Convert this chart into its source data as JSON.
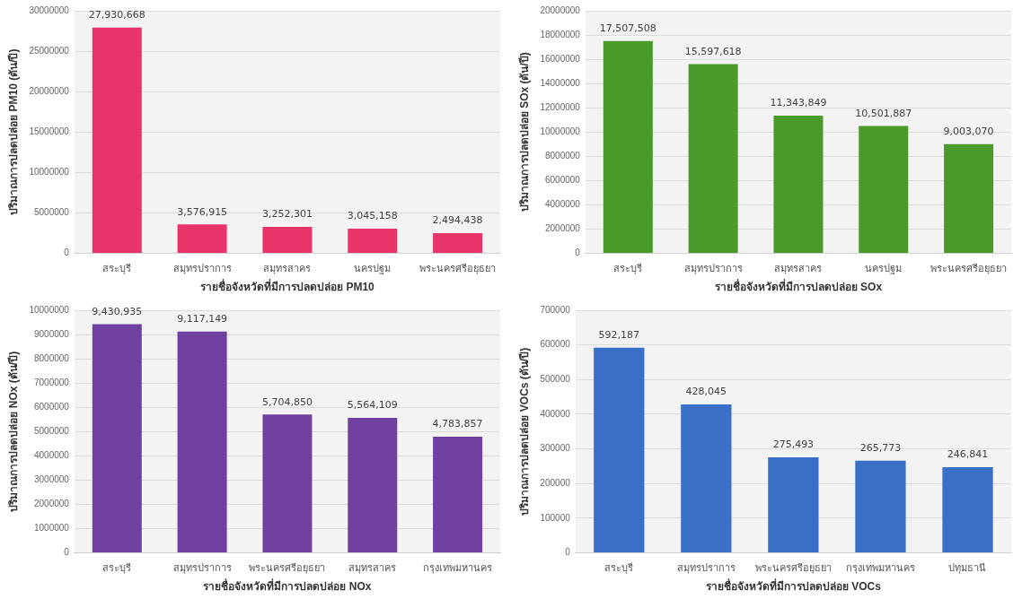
{
  "chart_data": [
    {
      "type": "bar",
      "xlabel": "รายชื่อจังหวัดที่มีการปลดปล่อย PM10",
      "ylabel": "ปริมาณการปลดปล่อย PM10 (ตัน/ปี)",
      "categories": [
        "สระบุรี",
        "สมุทรปราการ",
        "สมุทรสาคร",
        "นครปฐม",
        "พระนครศรีอยุธยา"
      ],
      "values": [
        27930668,
        3576915,
        3252301,
        3045158,
        2494438
      ],
      "value_labels": [
        "27,930,668",
        "3,576,915",
        "3,252,301",
        "3,045,158",
        "2,494,438"
      ],
      "color": "#e8336b",
      "ylim": [
        0,
        30000000
      ],
      "yticks": [
        0,
        5000000,
        10000000,
        15000000,
        20000000,
        25000000,
        30000000
      ],
      "grid": "y"
    },
    {
      "type": "bar",
      "xlabel": "รายชื่อจังหวัดที่มีการปลดปล่อย SOx",
      "ylabel": "ปริมาณการปลดปล่อย SOx (ตัน/ปี)",
      "categories": [
        "สระบุรี",
        "สมุทรปราการ",
        "สมุทรสาคร",
        "นครปฐม",
        "พระนครศรีอยุธยา"
      ],
      "values": [
        17507508,
        15597618,
        11343849,
        10501887,
        9003070
      ],
      "value_labels": [
        "17,507,508",
        "15,597,618",
        "11,343,849",
        "10,501,887",
        "9,003,070"
      ],
      "color": "#4a9a2a",
      "ylim": [
        0,
        20000000
      ],
      "yticks": [
        0,
        2000000,
        4000000,
        6000000,
        8000000,
        10000000,
        12000000,
        14000000,
        16000000,
        18000000,
        20000000
      ],
      "grid": "y"
    },
    {
      "type": "bar",
      "xlabel": "รายชื่อจังหวัดที่มีการปลดปล่อย NOx",
      "ylabel": "ปริมาณการปลดปล่อย NOx (ตัน/ปี)",
      "categories": [
        "สระบุรี",
        "สมุทรปราการ",
        "พระนครศรีอยุธยา",
        "สมุทรสาคร",
        "กรุงเทพมหานคร"
      ],
      "values": [
        9430935,
        9117149,
        5704850,
        5564109,
        4783857
      ],
      "value_labels": [
        "9,430,935",
        "9,117,149",
        "5,704,850",
        "5,564,109",
        "4,783,857"
      ],
      "color": "#7040a0",
      "ylim": [
        0,
        10000000
      ],
      "yticks": [
        0,
        1000000,
        2000000,
        3000000,
        4000000,
        5000000,
        6000000,
        7000000,
        8000000,
        9000000,
        10000000
      ],
      "grid": "y"
    },
    {
      "type": "bar",
      "xlabel": "รายชื่อจังหวัดที่มีการปลดปล่อย VOCs",
      "ylabel": "ปริมาณการปลดปล่อย VOCs (ตัน/ปี)",
      "categories": [
        "สระบุรี",
        "สมุทรปราการ",
        "พระนครศรีอยุธยา",
        "กรุงเทพมหานคร",
        "ปทุมธานี"
      ],
      "values": [
        592187,
        428045,
        275493,
        265773,
        246841
      ],
      "value_labels": [
        "592,187",
        "428,045",
        "275,493",
        "265,773",
        "246,841"
      ],
      "color": "#3a6fc8",
      "ylim": [
        0,
        700000
      ],
      "yticks": [
        0,
        100000,
        200000,
        300000,
        400000,
        500000,
        600000,
        700000
      ],
      "grid": "y"
    }
  ]
}
